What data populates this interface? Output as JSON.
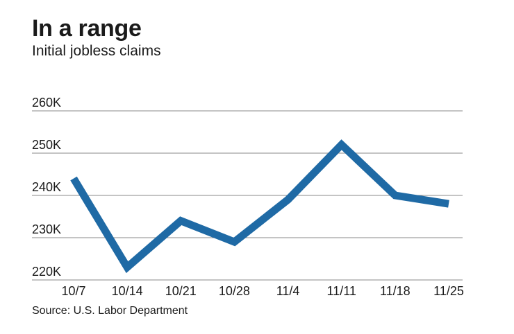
{
  "header": {
    "title": "In a range",
    "subtitle": "Initial jobless claims"
  },
  "footer": {
    "source": "Source: U.S. Labor Department"
  },
  "chart_data": {
    "type": "line",
    "x": [
      "10/7",
      "10/14",
      "10/21",
      "10/28",
      "11/4",
      "11/11",
      "11/18",
      "11/25"
    ],
    "series": [
      {
        "values": [
          244000,
          223000,
          234000,
          229000,
          239000,
          252000,
          240000,
          238000
        ]
      }
    ],
    "ytick_labels": [
      "220K",
      "230K",
      "240K",
      "250K",
      "260K"
    ],
    "ytick_values": [
      220000,
      230000,
      240000,
      250000,
      260000
    ],
    "ylim": [
      220000,
      260000
    ],
    "grid": true,
    "line_color": "#1f6aa5",
    "grid_color": "#8a8a8a"
  }
}
